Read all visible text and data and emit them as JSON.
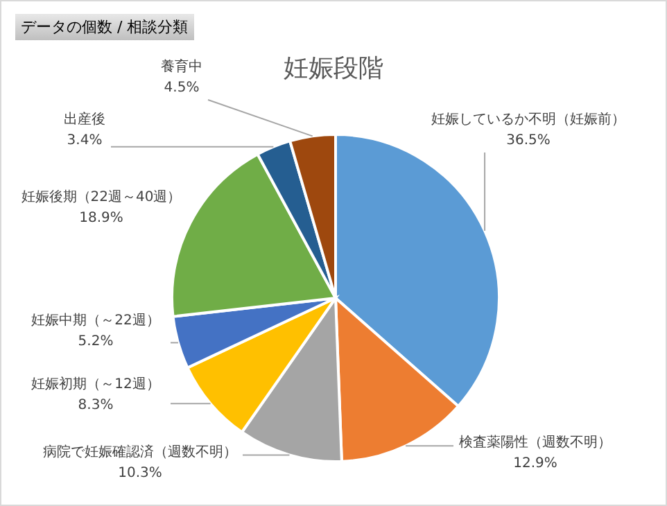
{
  "chart_data": {
    "type": "pie",
    "title": "妊娠段階",
    "annotations": [
      "データの個数 / 相談分類"
    ],
    "categories": [
      "妊娠しているか不明（妊娠前）",
      "検査薬陽性（週数不明）",
      "病院で妊娠確認済（週数不明）",
      "妊娠初期（～12週）",
      "妊娠中期（～22週）",
      "妊娠後期（22週～40週）",
      "出産後",
      "養育中"
    ],
    "values": [
      36.5,
      12.9,
      10.3,
      8.3,
      5.2,
      18.9,
      3.4,
      4.5
    ],
    "value_labels": [
      "36.5%",
      "12.9%",
      "10.3%",
      "8.3%",
      "5.2%",
      "18.9%",
      "3.4%",
      "4.5%"
    ],
    "colors": [
      "#5b9bd5",
      "#ed7d31",
      "#a5a5a5",
      "#ffc000",
      "#4472c4",
      "#70ad47",
      "#255e91",
      "#9e480e"
    ]
  }
}
